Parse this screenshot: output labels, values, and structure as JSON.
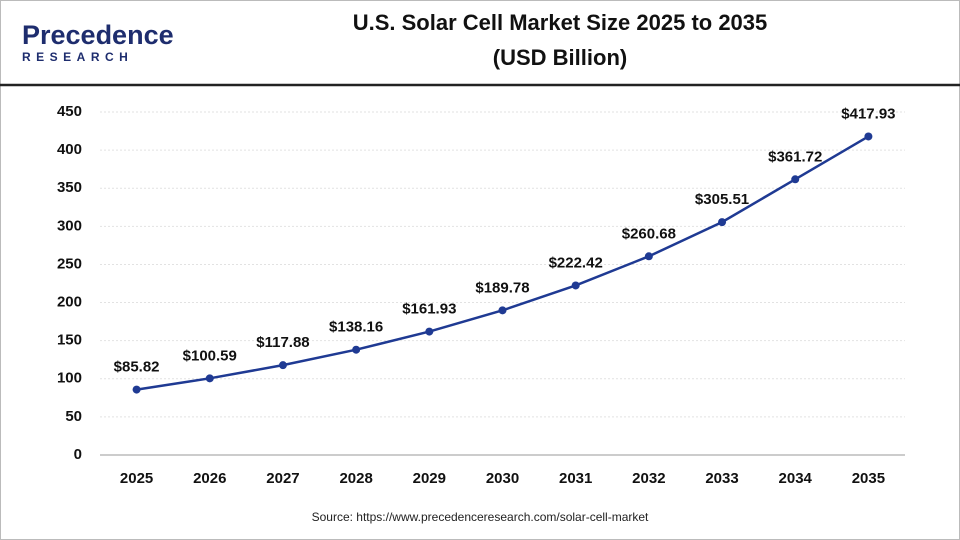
{
  "logo": {
    "name": "Precedence",
    "tagline": "RESEARCH"
  },
  "chart_data": {
    "type": "line",
    "title": "U.S. Solar Cell Market Size 2025 to 2035",
    "subtitle": "(USD Billion)",
    "source": "Source: https://www.precedenceresearch.com/solar-cell-market",
    "categories": [
      "2025",
      "2026",
      "2027",
      "2028",
      "2029",
      "2030",
      "2031",
      "2032",
      "2033",
      "2034",
      "2035"
    ],
    "values": [
      85.82,
      100.59,
      117.88,
      138.16,
      161.93,
      189.78,
      222.42,
      260.68,
      305.51,
      361.72,
      417.93
    ],
    "value_labels": [
      "$85.82",
      "$100.59",
      "$117.88",
      "$138.16",
      "$161.93",
      "$189.78",
      "$222.42",
      "$260.68",
      "$305.51",
      "$361.72",
      "$417.93"
    ],
    "color": "#1f3a93",
    "ylim": [
      0,
      450
    ],
    "yticks": [
      0,
      50,
      100,
      150,
      200,
      250,
      300,
      350,
      400,
      450
    ],
    "grid": true
  }
}
